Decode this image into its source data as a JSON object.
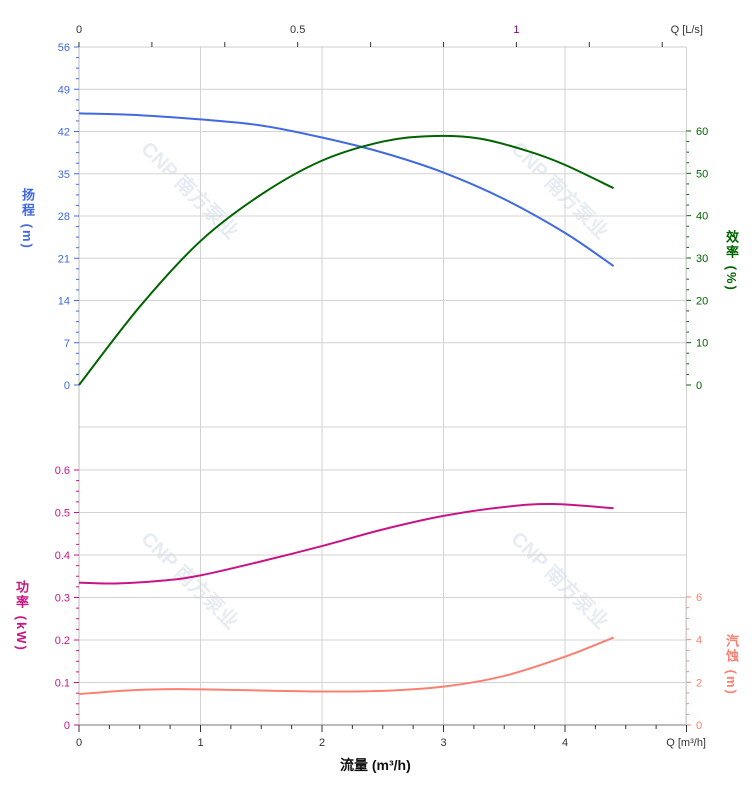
{
  "chart_data": [
    {
      "type": "line",
      "panel": "top",
      "x_axis": {
        "label": "Q [m³/h]",
        "ticks": [
          0,
          1,
          2,
          3,
          4
        ],
        "range": [
          0,
          5
        ]
      },
      "top_axis": {
        "label": "Q [L/s]",
        "ticks": [
          0,
          0.5,
          1
        ]
      },
      "left_axis": {
        "label": "扬程 (m)",
        "range": [
          0,
          56
        ],
        "ticks": [
          0,
          7,
          14,
          21,
          28,
          35,
          42,
          49,
          56
        ],
        "color": "#4169e1"
      },
      "right_axis": {
        "label": "效率 (%)",
        "range": [
          0,
          60
        ],
        "ticks": [
          0,
          10,
          20,
          30,
          40,
          50,
          60
        ],
        "color": "#006400"
      },
      "grid": true,
      "series": [
        {
          "axis": "left",
          "color": "#4169e1",
          "x": [
            0,
            0.5,
            1,
            1.5,
            2,
            2.5,
            3,
            3.5,
            4,
            4.4
          ],
          "y": [
            45,
            44.7,
            44,
            43,
            41,
            38.5,
            35.2,
            30.8,
            25.2,
            19.7
          ]
        },
        {
          "axis": "right",
          "color": "#006400",
          "x": [
            0,
            0.5,
            1,
            1.5,
            2,
            2.5,
            2.9,
            3.3,
            3.7,
            4,
            4.4
          ],
          "y": [
            0,
            18.5,
            34,
            45,
            53,
            57.5,
            58.8,
            58.2,
            55.2,
            52,
            46.5
          ]
        }
      ]
    },
    {
      "type": "line",
      "panel": "bottom",
      "left_axis": {
        "label": "功率 (kW)",
        "range": [
          0,
          0.6
        ],
        "ticks": [
          0,
          0.1,
          0.2,
          0.3,
          0.4,
          0.5,
          0.6
        ],
        "color": "#c71585"
      },
      "right_axis": {
        "label": "汽蚀 (m)",
        "range": [
          0,
          6
        ],
        "ticks": [
          0,
          2,
          4,
          6
        ],
        "color": "#fa8072"
      },
      "series": [
        {
          "axis": "left",
          "color": "#c71585",
          "x": [
            0,
            0.3,
            0.7,
            1,
            1.5,
            2,
            2.5,
            3,
            3.5,
            3.9,
            4.4
          ],
          "y": [
            0.335,
            0.333,
            0.34,
            0.352,
            0.385,
            0.421,
            0.46,
            0.492,
            0.513,
            0.52,
            0.51
          ]
        },
        {
          "axis": "right",
          "color": "#fa8072",
          "x": [
            0,
            0.4,
            0.8,
            1.3,
            2,
            2.5,
            3,
            3.5,
            4,
            4.4
          ],
          "y": [
            1.45,
            1.62,
            1.68,
            1.64,
            1.57,
            1.6,
            1.8,
            2.3,
            3.2,
            4.1
          ]
        }
      ]
    }
  ],
  "xlabel": "流量 (m³/h)",
  "watermark": "CNP 南方泵业"
}
